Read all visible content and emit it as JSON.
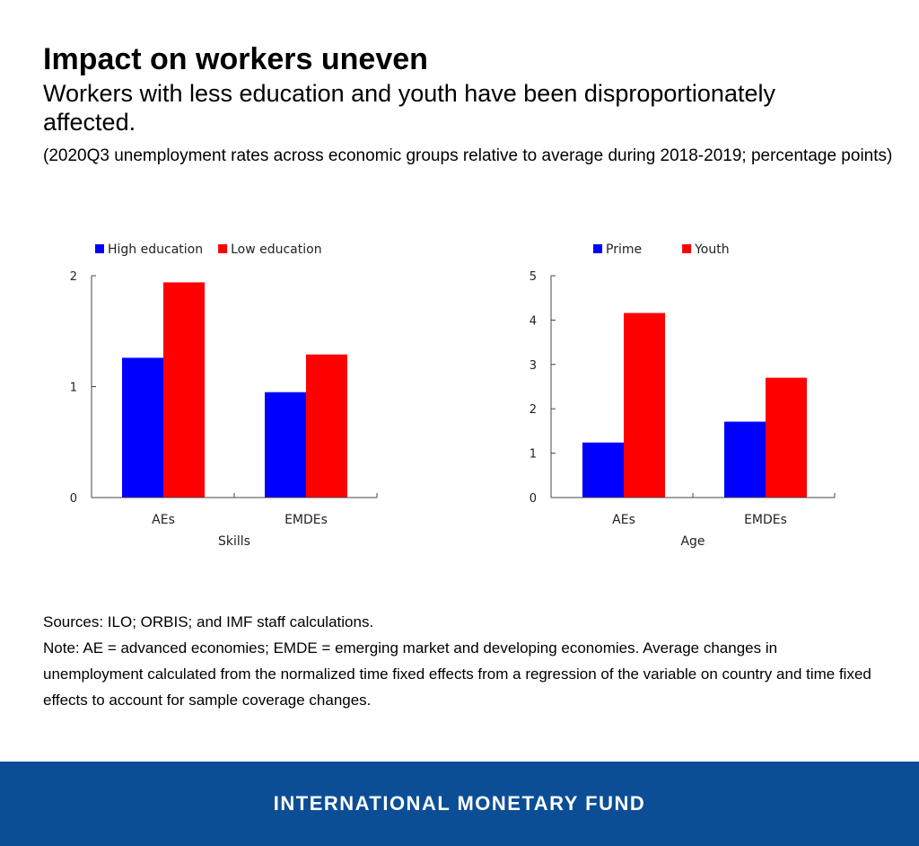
{
  "header": {
    "title": "Impact on workers uneven",
    "subtitle": "Workers with less education and youth have been disproportionately affected.",
    "units": "(2020Q3 unemployment rates across economic groups relative to average during 2018-2019; percentage points)"
  },
  "chart_data": [
    {
      "type": "bar",
      "categories": [
        "AEs",
        "EMDEs"
      ],
      "series": [
        {
          "name": "High education",
          "values": [
            1.26,
            0.95
          ],
          "color": "#0000ff"
        },
        {
          "name": "Low education",
          "values": [
            1.94,
            1.29
          ],
          "color": "#ff0000"
        }
      ],
      "xlabel": "Skills",
      "ylabel": "",
      "ylim": [
        0,
        2
      ],
      "yticks": [
        0,
        1,
        2
      ],
      "legend": "top-left",
      "grid": false
    },
    {
      "type": "bar",
      "categories": [
        "AEs",
        "EMDEs"
      ],
      "series": [
        {
          "name": "Prime",
          "values": [
            1.24,
            1.71
          ],
          "color": "#0000ff"
        },
        {
          "name": "Youth",
          "values": [
            4.16,
            2.7
          ],
          "color": "#ff0000"
        }
      ],
      "xlabel": "Age",
      "ylabel": "",
      "ylim": [
        0,
        5
      ],
      "yticks": [
        0,
        1,
        2,
        3,
        4,
        5
      ],
      "legend": "top-left",
      "grid": false
    }
  ],
  "footnotes": {
    "sources": "Sources: ILO; ORBIS; and IMF staff calculations.",
    "note": "Note: AE = advanced economies; EMDE = emerging market and developing economies. Average changes in unemployment calculated from the normalized time fixed effects from a regression of the variable on country and time fixed effects to account for sample coverage changes."
  },
  "footer": {
    "org": "INTERNATIONAL MONETARY FUND",
    "background": "#0b4e96"
  }
}
